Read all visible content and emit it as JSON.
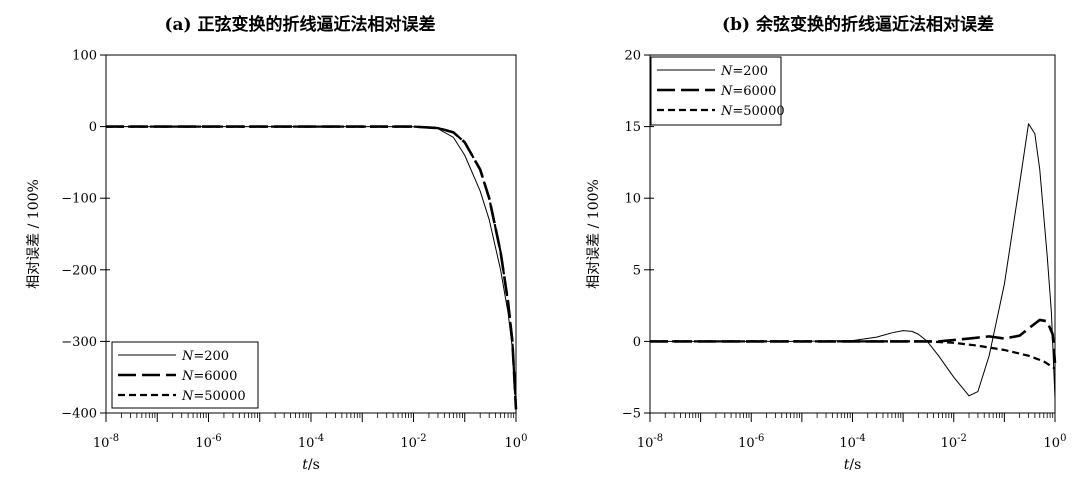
{
  "chart_data": [
    {
      "type": "line",
      "title": "(a) 正弦变换的折线逼近法相对误差",
      "xlabel_var": "t",
      "xlabel_unit": "/s",
      "ylabel": "相对误差 / 100%",
      "xscale": "log",
      "xlim": [
        1e-08,
        1
      ],
      "ylim": [
        -400,
        100
      ],
      "yticks": [
        "100",
        "0",
        "−100",
        "−200",
        "−300",
        "−400"
      ],
      "xticks": [
        {
          "base": "10",
          "exp": "-8"
        },
        {
          "base": "10",
          "exp": "-6"
        },
        {
          "base": "10",
          "exp": "-4"
        },
        {
          "base": "10",
          "exp": "-2"
        },
        {
          "base": "10",
          "exp": "0"
        }
      ],
      "legend_position": "bottom-left",
      "series": [
        {
          "name": "N=200",
          "var": "N",
          "eq": "=200",
          "style": "solid",
          "points": [
            [
              1e-08,
              0
            ],
            [
              0.001,
              0
            ],
            [
              0.01,
              -0.3
            ],
            [
              0.03,
              -3
            ],
            [
              0.06,
              -15
            ],
            [
              0.1,
              -40
            ],
            [
              0.2,
              -90
            ],
            [
              0.3,
              -130
            ],
            [
              0.5,
              -200
            ],
            [
              0.7,
              -260
            ],
            [
              0.85,
              -310
            ],
            [
              1.0,
              -380
            ]
          ]
        },
        {
          "name": "N=6000",
          "var": "N",
          "eq": "=6000",
          "style": "longdash",
          "points": [
            [
              1e-08,
              0
            ],
            [
              0.01,
              0
            ],
            [
              0.03,
              -2
            ],
            [
              0.06,
              -8
            ],
            [
              0.1,
              -22
            ],
            [
              0.2,
              -60
            ],
            [
              0.3,
              -100
            ],
            [
              0.5,
              -175
            ],
            [
              0.7,
              -245
            ],
            [
              0.85,
              -300
            ],
            [
              1.0,
              -395
            ]
          ]
        },
        {
          "name": "N=50000",
          "var": "N",
          "eq": "=50000",
          "style": "shortdash",
          "points": [
            [
              1e-08,
              0
            ],
            [
              0.01,
              0
            ],
            [
              0.03,
              -2
            ],
            [
              0.06,
              -8
            ],
            [
              0.1,
              -22
            ],
            [
              0.2,
              -60
            ],
            [
              0.3,
              -100
            ],
            [
              0.5,
              -175
            ],
            [
              0.7,
              -245
            ],
            [
              0.85,
              -300
            ],
            [
              1.0,
              -395
            ]
          ]
        }
      ]
    },
    {
      "type": "line",
      "title": "(b) 余弦变换的折线逼近法相对误差",
      "xlabel_var": "t",
      "xlabel_unit": "/s",
      "ylabel": "相对误差 / 100%",
      "xscale": "log",
      "xlim": [
        1e-08,
        1
      ],
      "ylim": [
        -5,
        20
      ],
      "yticks": [
        "20",
        "15",
        "10",
        "5",
        "0",
        "−5"
      ],
      "xticks": [
        {
          "base": "10",
          "exp": "-8"
        },
        {
          "base": "10",
          "exp": "-6"
        },
        {
          "base": "10",
          "exp": "-4"
        },
        {
          "base": "10",
          "exp": "-2"
        },
        {
          "base": "10",
          "exp": "0"
        }
      ],
      "legend_position": "top-left",
      "series": [
        {
          "name": "N=200",
          "var": "N",
          "eq": "=200",
          "style": "solid",
          "points": [
            [
              1e-08,
              0
            ],
            [
              1e-05,
              0
            ],
            [
              0.0001,
              0.05
            ],
            [
              0.0003,
              0.3
            ],
            [
              0.0006,
              0.6
            ],
            [
              0.001,
              0.75
            ],
            [
              0.0015,
              0.7
            ],
            [
              0.002,
              0.5
            ],
            [
              0.003,
              0
            ],
            [
              0.005,
              -1
            ],
            [
              0.01,
              -2.5
            ],
            [
              0.02,
              -3.8
            ],
            [
              0.03,
              -3.5
            ],
            [
              0.05,
              -1
            ],
            [
              0.1,
              4
            ],
            [
              0.2,
              11
            ],
            [
              0.3,
              15.2
            ],
            [
              0.4,
              14.5
            ],
            [
              0.5,
              12
            ],
            [
              0.7,
              6
            ],
            [
              0.85,
              2
            ],
            [
              1.0,
              -4
            ]
          ]
        },
        {
          "name": "N=6000",
          "var": "N",
          "eq": "=6000",
          "style": "longdash",
          "points": [
            [
              1e-08,
              0
            ],
            [
              0.005,
              0
            ],
            [
              0.02,
              0.2
            ],
            [
              0.05,
              0.35
            ],
            [
              0.1,
              0.2
            ],
            [
              0.2,
              0.4
            ],
            [
              0.3,
              0.9
            ],
            [
              0.5,
              1.5
            ],
            [
              0.7,
              1.4
            ],
            [
              0.9,
              0.5
            ],
            [
              1.0,
              -1.5
            ]
          ]
        },
        {
          "name": "N=50000",
          "var": "N",
          "eq": "=50000",
          "style": "shortdash",
          "points": [
            [
              1e-08,
              0
            ],
            [
              0.003,
              0
            ],
            [
              0.01,
              -0.1
            ],
            [
              0.03,
              -0.3
            ],
            [
              0.1,
              -0.6
            ],
            [
              0.3,
              -1.0
            ],
            [
              0.6,
              -1.4
            ],
            [
              1.0,
              -1.9
            ]
          ]
        }
      ]
    }
  ]
}
